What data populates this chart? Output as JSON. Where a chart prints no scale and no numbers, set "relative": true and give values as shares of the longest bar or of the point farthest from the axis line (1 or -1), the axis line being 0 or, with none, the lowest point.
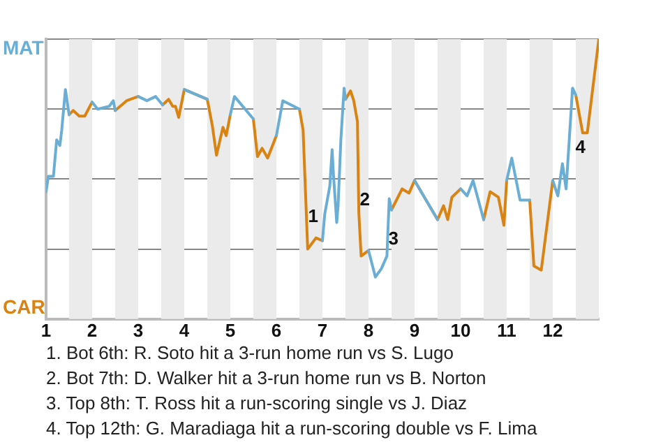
{
  "chart_data": {
    "type": "line",
    "legend": "left",
    "grid": "y",
    "marker": "none",
    "line_style": "solid",
    "x": [
      1.0,
      1.05,
      1.16,
      1.23,
      1.3,
      1.34,
      1.42,
      1.5,
      1.59,
      1.72,
      1.84,
      2.0,
      2.12,
      2.37,
      2.46,
      2.5,
      2.75,
      3.0,
      3.19,
      3.38,
      3.53,
      3.66,
      3.75,
      3.81,
      3.88,
      4.0,
      4.5,
      4.61,
      4.7,
      4.84,
      4.91,
      5.0,
      5.09,
      5.5,
      5.59,
      5.69,
      5.81,
      6.0,
      6.14,
      6.5,
      6.58,
      6.68,
      6.86,
      7.0,
      7.05,
      7.16,
      7.21,
      7.24,
      7.31,
      7.34,
      7.4,
      7.47,
      7.5,
      7.61,
      7.68,
      7.76,
      7.79,
      7.84,
      8.0,
      8.15,
      8.28,
      8.4,
      8.45,
      8.5,
      8.73,
      8.88,
      9.0,
      9.5,
      9.63,
      9.72,
      9.81,
      10.0,
      10.14,
      10.27,
      10.5,
      10.64,
      10.82,
      10.94,
      11.0,
      11.11,
      11.29,
      11.5,
      11.59,
      11.75,
      12.0,
      12.11,
      12.21,
      12.29,
      12.43,
      12.5,
      12.65,
      12.75,
      13.0
    ],
    "xlim": [
      1,
      13
    ],
    "xticks": [
      1,
      2,
      3,
      4,
      5,
      6,
      7,
      8,
      9,
      10,
      11,
      12
    ],
    "relative": true,
    "series": [
      {
        "name": "MAT",
        "color": "#6aaed6",
        "values": [
          0.455,
          0.51,
          0.51,
          0.64,
          0.62,
          0.675,
          0.82,
          0.73,
          null,
          null,
          null,
          0.775,
          0.75,
          0.76,
          0.78,
          0.745,
          null,
          0.795,
          0.78,
          0.795,
          0.765,
          null,
          null,
          null,
          null,
          0.82,
          0.785,
          null,
          null,
          null,
          null,
          0.73,
          0.795,
          0.715,
          null,
          null,
          null,
          0.655,
          0.78,
          0.75,
          null,
          null,
          null,
          0.28,
          0.375,
          0.475,
          0.605,
          0.515,
          0.345,
          0.405,
          0.64,
          0.825,
          0.785,
          null,
          null,
          null,
          null,
          null,
          0.245,
          0.15,
          0.18,
          0.225,
          0.43,
          0.39,
          null,
          null,
          0.495,
          0.355,
          null,
          null,
          null,
          0.465,
          0.44,
          0.495,
          0.355,
          null,
          null,
          null,
          0.495,
          0.575,
          0.425,
          0.425,
          null,
          null,
          0.495,
          0.44,
          0.555,
          0.465,
          0.825,
          0.8,
          null,
          null,
          null
        ]
      },
      {
        "name": "CAR",
        "color": "#d98313",
        "values": [
          null,
          null,
          null,
          null,
          null,
          null,
          null,
          0.73,
          0.745,
          0.725,
          0.725,
          0.775,
          null,
          null,
          null,
          0.745,
          0.78,
          0.795,
          null,
          null,
          0.765,
          0.785,
          0.76,
          0.76,
          0.72,
          0.82,
          0.785,
          0.69,
          0.585,
          0.685,
          0.655,
          0.73,
          null,
          0.715,
          0.58,
          0.61,
          0.575,
          0.655,
          null,
          0.75,
          0.675,
          0.25,
          0.29,
          0.28,
          null,
          null,
          null,
          null,
          null,
          null,
          null,
          null,
          0.785,
          0.815,
          0.78,
          0.705,
          0.38,
          0.225,
          0.245,
          null,
          null,
          null,
          null,
          0.39,
          0.465,
          0.45,
          0.495,
          0.355,
          0.405,
          0.355,
          0.435,
          0.465,
          null,
          null,
          0.355,
          0.455,
          0.435,
          0.335,
          0.495,
          null,
          null,
          0.425,
          0.19,
          0.175,
          0.495,
          null,
          null,
          null,
          null,
          0.8,
          0.665,
          0.665,
          1.0
        ]
      }
    ],
    "bands": [
      {
        "axis": "x",
        "from": 1.5,
        "to": 2,
        "color": "#ebebeb"
      },
      {
        "axis": "x",
        "from": 2.5,
        "to": 3,
        "color": "#ebebeb"
      },
      {
        "axis": "x",
        "from": 3.5,
        "to": 4,
        "color": "#ebebeb"
      },
      {
        "axis": "x",
        "from": 4.5,
        "to": 5,
        "color": "#ebebeb"
      },
      {
        "axis": "x",
        "from": 5.5,
        "to": 6,
        "color": "#ebebeb"
      },
      {
        "axis": "x",
        "from": 6.5,
        "to": 7,
        "color": "#ebebeb"
      },
      {
        "axis": "x",
        "from": 7.5,
        "to": 8,
        "color": "#ebebeb"
      },
      {
        "axis": "x",
        "from": 8.5,
        "to": 9,
        "color": "#ebebeb"
      },
      {
        "axis": "x",
        "from": 9.5,
        "to": 10,
        "color": "#ebebeb"
      },
      {
        "axis": "x",
        "from": 10.5,
        "to": 11,
        "color": "#ebebeb"
      },
      {
        "axis": "x",
        "from": 11.5,
        "to": 12,
        "color": "#ebebeb"
      },
      {
        "axis": "x",
        "from": 12.5,
        "to": 13,
        "color": "#ebebeb"
      }
    ],
    "annotations": [
      {
        "text": "1",
        "x": 6.8,
        "y": 0.365
      },
      {
        "text": "2",
        "x": 7.92,
        "y": 0.425
      },
      {
        "text": "3",
        "x": 8.54,
        "y": 0.285
      },
      {
        "text": "4",
        "x": 12.6,
        "y": 0.61
      },
      "1. Bot 6th: R. Soto hit a 3-run home run vs S. Lugo",
      "2. Bot 7th: D. Walker hit a 3-run home run vs B. Norton",
      "3. Top 8th: T. Ross hit a run-scoring single vs J. Diaz",
      "4. Top 12th: G. Maradiaga hit a run-scoring double vs F. Lima"
    ]
  }
}
